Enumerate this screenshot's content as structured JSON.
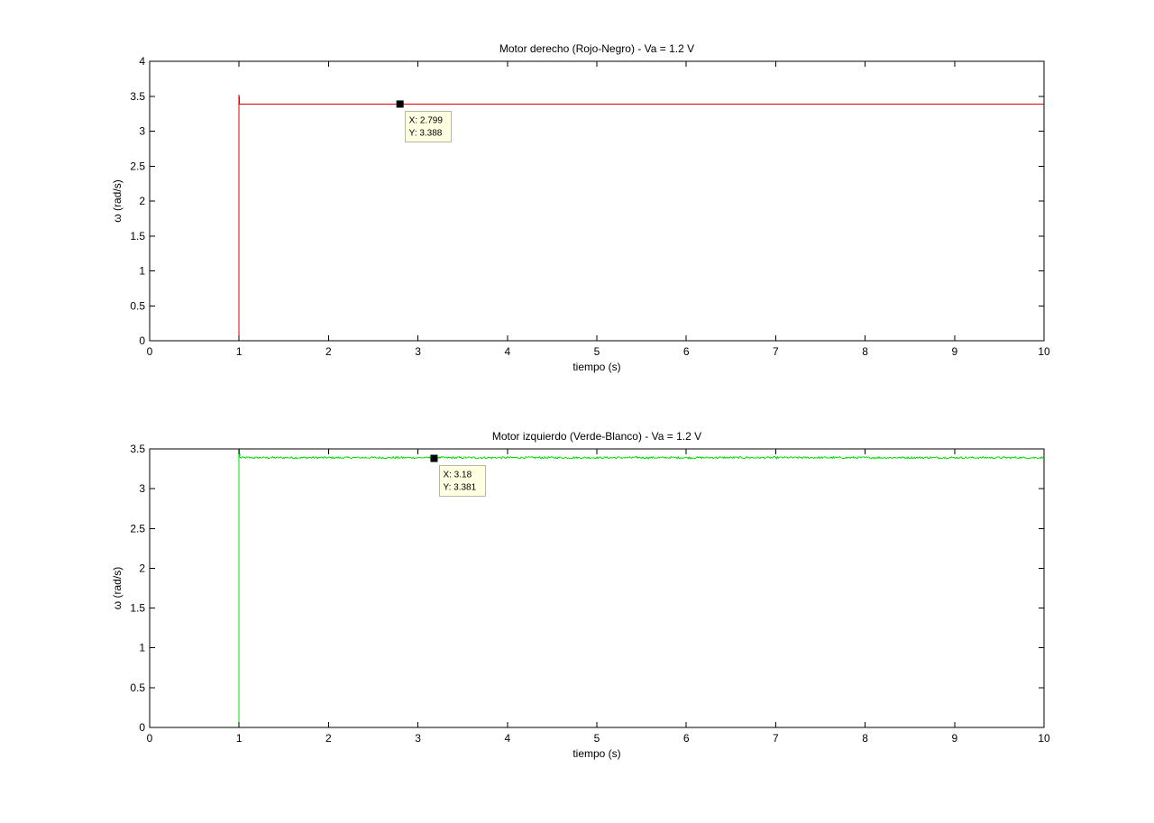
{
  "chart_data": [
    {
      "type": "line",
      "title": "Motor derecho (Rojo-Negro) - Va = 1.2 V",
      "xlabel": "tiempo (s)",
      "ylabel": "ω (rad/s)",
      "xlim": [
        0,
        10
      ],
      "ylim": [
        0,
        4
      ],
      "xticks": [
        0,
        1,
        2,
        3,
        4,
        5,
        6,
        7,
        8,
        9,
        10
      ],
      "yticks": [
        0,
        0.5,
        1,
        1.5,
        2,
        2.5,
        3,
        3.5,
        4
      ],
      "grid": false,
      "line_color": "#e00000",
      "series": [
        {
          "x": [
            0,
            1,
            1,
            1.003,
            10
          ],
          "y": [
            0,
            0,
            3.52,
            3.388,
            3.388
          ],
          "noise_amplitude": 0
        }
      ],
      "datatip": {
        "x": 2.799,
        "y": 3.388,
        "x_text": "X: 2.799",
        "y_text": "Y: 3.388"
      }
    },
    {
      "type": "line",
      "title": "Motor izquierdo (Verde-Blanco) - Va = 1.2 V",
      "xlabel": "tiempo (s)",
      "ylabel": "ω (rad/s)",
      "xlim": [
        0,
        10
      ],
      "ylim": [
        0,
        3.5
      ],
      "xticks": [
        0,
        1,
        2,
        3,
        4,
        5,
        6,
        7,
        8,
        9,
        10
      ],
      "yticks": [
        0,
        0.5,
        1,
        1.5,
        2,
        2.5,
        3,
        3.5
      ],
      "grid": false,
      "line_color": "#00e000",
      "series": [
        {
          "x": [
            0,
            1,
            1,
            10
          ],
          "y": [
            0,
            0,
            3.5,
            3.39
          ],
          "noise_amplitude": 0.012
        }
      ],
      "datatip": {
        "x": 3.18,
        "y": 3.381,
        "x_text": "X: 3.18",
        "y_text": "Y: 3.381"
      }
    }
  ]
}
